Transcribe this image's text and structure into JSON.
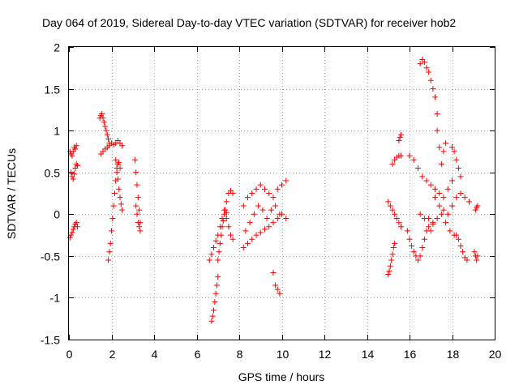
{
  "chart_data": {
    "type": "scatter",
    "title": "Day 064 of 2019, Sidereal Day-to-day VTEC variation (SDTVAR) for receiver hob2",
    "xlabel": "GPS time / hours",
    "ylabel": "SDTVAR / TECUs",
    "xlim": [
      0,
      20
    ],
    "ylim": [
      -1.5,
      2
    ],
    "xticks": [
      0,
      2,
      4,
      6,
      8,
      10,
      12,
      14,
      16,
      18,
      20
    ],
    "yticks": [
      -1.5,
      -1,
      -0.5,
      0,
      0.5,
      1,
      1.5,
      2
    ],
    "xtick_labels": [
      "0",
      "2",
      "4",
      "6",
      "8",
      "10",
      "12",
      "14",
      "16",
      "18",
      "20"
    ],
    "ytick_labels": [
      "-1.5",
      "-1",
      "-0.5",
      "0",
      "0.5",
      "1",
      "1.5",
      "2"
    ],
    "grid": true,
    "marker": "+",
    "color": "#ff0000",
    "series": [
      {
        "name": "s1",
        "x": [
          0.05,
          0.1,
          0.15,
          0.2,
          0.25,
          0.3,
          0.35
        ],
        "y": [
          0.75,
          0.72,
          0.7,
          0.75,
          0.8,
          0.78,
          0.82
        ]
      },
      {
        "name": "s2",
        "x": [
          0.1,
          0.15,
          0.2,
          0.25,
          0.3,
          0.35,
          0.4
        ],
        "y": [
          0.5,
          0.45,
          0.42,
          0.48,
          0.55,
          0.6,
          0.58
        ]
      },
      {
        "name": "s3",
        "x": [
          0.05,
          0.1,
          0.15,
          0.2,
          0.25,
          0.3,
          0.35,
          0.4
        ],
        "y": [
          -0.28,
          -0.25,
          -0.22,
          -0.18,
          -0.15,
          -0.12,
          -0.1,
          -0.15
        ]
      },
      {
        "name": "s4",
        "x": [
          1.45,
          1.5,
          1.55,
          1.6,
          1.65,
          1.7,
          1.75,
          1.8,
          1.85,
          1.9
        ],
        "y": [
          1.15,
          1.18,
          1.2,
          1.15,
          1.1,
          1.05,
          1.0,
          0.95,
          0.9,
          0.85
        ]
      },
      {
        "name": "s5",
        "x": [
          1.5,
          1.6,
          1.7,
          1.8,
          1.9,
          2.0,
          2.1,
          2.2,
          2.3,
          2.4,
          2.5
        ],
        "y": [
          0.72,
          0.75,
          0.78,
          0.8,
          0.82,
          0.85,
          0.83,
          0.85,
          0.88,
          0.85,
          0.82
        ]
      },
      {
        "name": "s6",
        "x": [
          1.85,
          1.9,
          1.95,
          2.0,
          2.05,
          2.1,
          2.15,
          2.2,
          2.25,
          2.3,
          2.35,
          2.4
        ],
        "y": [
          -0.55,
          -0.45,
          -0.35,
          -0.2,
          -0.05,
          0.1,
          0.25,
          0.4,
          0.5,
          0.6,
          0.62,
          0.55
        ]
      },
      {
        "name": "s7",
        "x": [
          2.2,
          2.25,
          2.3,
          2.35,
          2.4,
          2.45,
          2.5
        ],
        "y": [
          0.65,
          0.55,
          0.42,
          0.3,
          0.2,
          0.12,
          0.05
        ]
      },
      {
        "name": "s8",
        "x": [
          3.1,
          3.15,
          3.2,
          3.25,
          3.3,
          3.35
        ],
        "y": [
          0.65,
          0.5,
          0.35,
          0.2,
          0.05,
          -0.1
        ]
      },
      {
        "name": "s9",
        "x": [
          3.15,
          3.2,
          3.25,
          3.3,
          3.35
        ],
        "y": [
          0.1,
          0.0,
          -0.1,
          -0.15,
          -0.2
        ]
      },
      {
        "name": "s10",
        "x": [
          6.7,
          6.75,
          6.8,
          6.85,
          6.9,
          6.95,
          7.0
        ],
        "y": [
          -1.28,
          -1.22,
          -1.15,
          -1.05,
          -0.95,
          -0.85,
          -0.75
        ]
      },
      {
        "name": "s11",
        "x": [
          6.6,
          6.7,
          6.8,
          6.9,
          7.0,
          7.1,
          7.2,
          7.3,
          7.4,
          7.5,
          7.6,
          7.7
        ],
        "y": [
          -0.55,
          -0.48,
          -0.4,
          -0.32,
          -0.25,
          -0.15,
          -0.05,
          0.05,
          0.15,
          0.25,
          0.28,
          0.25
        ]
      },
      {
        "name": "s12",
        "x": [
          7.0,
          7.05,
          7.1,
          7.15,
          7.2,
          7.25,
          7.3,
          7.35,
          7.4
        ],
        "y": [
          -0.55,
          -0.45,
          -0.35,
          -0.25,
          -0.15,
          -0.08,
          0.0,
          0.05,
          0.02
        ]
      },
      {
        "name": "s13",
        "x": [
          7.4,
          7.5,
          7.6,
          7.7
        ],
        "y": [
          -0.05,
          -0.15,
          -0.25,
          -0.3
        ]
      },
      {
        "name": "s14",
        "x": [
          8.2,
          8.4,
          8.6,
          8.8,
          9.0,
          9.2,
          9.4,
          9.6,
          9.8,
          10.0,
          10.2
        ],
        "y": [
          -0.4,
          -0.35,
          -0.3,
          -0.25,
          -0.22,
          -0.18,
          -0.15,
          -0.1,
          -0.05,
          0.0,
          -0.05
        ]
      },
      {
        "name": "s15",
        "x": [
          8.2,
          8.4,
          8.6,
          8.8,
          9.0,
          9.2,
          9.4,
          9.6,
          9.8,
          10.0,
          10.2
        ],
        "y": [
          0.1,
          0.2,
          0.25,
          0.3,
          0.35,
          0.3,
          0.25,
          0.2,
          0.3,
          0.35,
          0.4
        ]
      },
      {
        "name": "s16",
        "x": [
          8.3,
          8.5,
          8.7,
          8.9,
          9.1,
          9.3,
          9.5,
          9.7,
          9.9
        ],
        "y": [
          -0.2,
          -0.1,
          0.0,
          0.1,
          0.05,
          -0.05,
          0.05,
          0.1,
          0.0
        ]
      },
      {
        "name": "s17",
        "x": [
          9.6,
          9.7,
          9.8,
          9.9
        ],
        "y": [
          -0.7,
          -0.85,
          -0.9,
          -0.95
        ]
      },
      {
        "name": "s18",
        "x": [
          15.0,
          15.05,
          15.1,
          15.15,
          15.2,
          15.25,
          15.3
        ],
        "y": [
          -0.72,
          -0.68,
          -0.62,
          -0.55,
          -0.48,
          -0.4,
          -0.35
        ]
      },
      {
        "name": "s19",
        "x": [
          15.2,
          15.3,
          15.4,
          15.5,
          15.6
        ],
        "y": [
          0.6,
          0.65,
          0.68,
          0.7,
          0.7
        ]
      },
      {
        "name": "s20",
        "x": [
          15.0,
          15.1,
          15.2,
          15.3,
          15.4,
          15.5,
          15.6
        ],
        "y": [
          0.15,
          0.1,
          0.05,
          0.0,
          -0.05,
          -0.1,
          -0.15
        ]
      },
      {
        "name": "s21",
        "x": [
          15.5,
          15.55,
          15.6
        ],
        "y": [
          0.88,
          0.92,
          0.95
        ]
      },
      {
        "name": "s22",
        "x": [
          15.9,
          16.0,
          16.1,
          16.2,
          16.3,
          16.4,
          16.5,
          16.6,
          16.7,
          16.8,
          16.9,
          17.0,
          17.1
        ],
        "y": [
          -0.2,
          -0.3,
          -0.38,
          -0.45,
          -0.5,
          -0.55,
          -0.5,
          -0.4,
          -0.3,
          -0.2,
          -0.15,
          -0.2,
          -0.12
        ]
      },
      {
        "name": "s23",
        "x": [
          16.5,
          16.6,
          16.7,
          16.8,
          16.9,
          17.0,
          17.1,
          17.2,
          17.3
        ],
        "y": [
          1.8,
          1.85,
          1.82,
          1.75,
          1.7,
          1.6,
          1.5,
          1.4,
          1.2
        ]
      },
      {
        "name": "s24",
        "x": [
          17.3,
          17.4,
          17.5,
          17.6,
          17.7
        ],
        "y": [
          1.0,
          0.8,
          0.6,
          0.75,
          0.85
        ]
      },
      {
        "name": "s25",
        "x": [
          16.0,
          16.2,
          16.4,
          16.6,
          16.8,
          17.0,
          17.2,
          17.4,
          17.6,
          17.8,
          18.0
        ],
        "y": [
          0.7,
          0.65,
          0.55,
          0.45,
          0.4,
          0.35,
          0.3,
          0.25,
          0.2,
          0.3,
          0.4
        ]
      },
      {
        "name": "s26",
        "x": [
          16.5,
          16.7,
          16.9,
          17.1,
          17.3,
          17.5,
          17.7,
          17.9,
          18.1
        ],
        "y": [
          0.0,
          -0.05,
          -0.05,
          -0.1,
          -0.05,
          0.0,
          -0.1,
          -0.2,
          -0.25
        ]
      },
      {
        "name": "s27",
        "x": [
          17.2,
          17.4,
          17.6,
          17.8,
          18.0,
          18.2,
          18.4,
          18.6,
          18.8
        ],
        "y": [
          0.2,
          0.1,
          0.05,
          0.0,
          0.1,
          0.2,
          0.25,
          0.2,
          0.15
        ]
      },
      {
        "name": "s28",
        "x": [
          18.0,
          18.1,
          18.2,
          18.3,
          18.4
        ],
        "y": [
          0.8,
          0.75,
          0.65,
          0.55,
          0.45
        ]
      },
      {
        "name": "s29",
        "x": [
          18.2,
          18.3,
          18.4,
          18.5,
          18.6,
          18.7
        ],
        "y": [
          -0.25,
          -0.3,
          -0.38,
          -0.45,
          -0.52,
          -0.55
        ]
      },
      {
        "name": "s30",
        "x": [
          19.05,
          19.1,
          19.15,
          19.2
        ],
        "y": [
          -0.45,
          -0.5,
          -0.55,
          -0.5
        ]
      },
      {
        "name": "s31",
        "x": [
          19.1,
          19.15,
          19.2
        ],
        "y": [
          0.05,
          0.08,
          0.1
        ]
      }
    ]
  }
}
